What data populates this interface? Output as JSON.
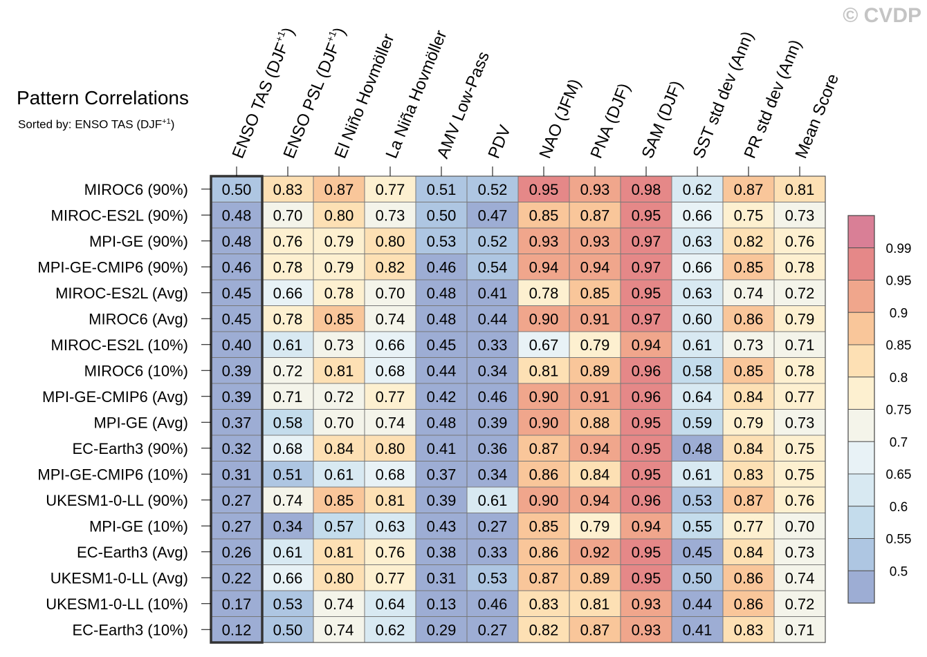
{
  "watermark": "© CVDP",
  "header": {
    "title": "Pattern Correlations",
    "subtitle_prefix": "Sorted by: ENSO TAS (DJF",
    "subtitle_sup": "+1",
    "subtitle_suffix": ")"
  },
  "chart_data": {
    "type": "heatmap",
    "title": "Pattern Correlations",
    "sorted_by": "ENSO TAS (DJF+1)",
    "columns": [
      {
        "label": "ENSO TAS (DJF",
        "sup": "+1",
        "suffix": ")"
      },
      {
        "label": "ENSO PSL (DJF",
        "sup": "+1",
        "suffix": ")"
      },
      {
        "label": "El Niño Hovmöller",
        "sup": "",
        "suffix": ""
      },
      {
        "label": "La Niña Hovmöller",
        "sup": "",
        "suffix": ""
      },
      {
        "label": "AMV Low-Pass",
        "sup": "",
        "suffix": ""
      },
      {
        "label": "PDV",
        "sup": "",
        "suffix": ""
      },
      {
        "label": "NAO (JFM)",
        "sup": "",
        "suffix": ""
      },
      {
        "label": "PNA (DJF)",
        "sup": "",
        "suffix": ""
      },
      {
        "label": "SAM (DJF)",
        "sup": "",
        "suffix": ""
      },
      {
        "label": "SST std dev (Ann)",
        "sup": "",
        "suffix": ""
      },
      {
        "label": "PR std dev (Ann)",
        "sup": "",
        "suffix": ""
      },
      {
        "label": "Mean Score",
        "sup": "",
        "suffix": ""
      }
    ],
    "rows": [
      "MIROC6 (90%)",
      "MIROC-ES2L (90%)",
      "MPI-GE (90%)",
      "MPI-GE-CMIP6 (90%)",
      "MIROC-ES2L (Avg)",
      "MIROC6 (Avg)",
      "MIROC-ES2L (10%)",
      "MIROC6 (10%)",
      "MPI-GE-CMIP6 (Avg)",
      "MPI-GE (Avg)",
      "EC-Earth3 (90%)",
      "MPI-GE-CMIP6 (10%)",
      "UKESM1-0-LL (90%)",
      "MPI-GE (10%)",
      "EC-Earth3 (Avg)",
      "UKESM1-0-LL (Avg)",
      "UKESM1-0-LL (10%)",
      "EC-Earth3 (10%)"
    ],
    "values": [
      [
        "0.50",
        "0.83",
        "0.87",
        "0.77",
        "0.51",
        "0.52",
        "0.95",
        "0.93",
        "0.98",
        "0.62",
        "0.87",
        "0.81"
      ],
      [
        "0.48",
        "0.70",
        "0.80",
        "0.73",
        "0.50",
        "0.47",
        "0.85",
        "0.87",
        "0.95",
        "0.66",
        "0.75",
        "0.73"
      ],
      [
        "0.48",
        "0.76",
        "0.79",
        "0.80",
        "0.53",
        "0.52",
        "0.93",
        "0.93",
        "0.97",
        "0.63",
        "0.82",
        "0.76"
      ],
      [
        "0.46",
        "0.78",
        "0.79",
        "0.82",
        "0.46",
        "0.54",
        "0.94",
        "0.94",
        "0.97",
        "0.66",
        "0.85",
        "0.78"
      ],
      [
        "0.45",
        "0.66",
        "0.78",
        "0.70",
        "0.48",
        "0.41",
        "0.78",
        "0.85",
        "0.95",
        "0.63",
        "0.74",
        "0.72"
      ],
      [
        "0.45",
        "0.78",
        "0.85",
        "0.74",
        "0.48",
        "0.44",
        "0.90",
        "0.91",
        "0.97",
        "0.60",
        "0.86",
        "0.79"
      ],
      [
        "0.40",
        "0.61",
        "0.73",
        "0.66",
        "0.45",
        "0.33",
        "0.67",
        "0.79",
        "0.94",
        "0.61",
        "0.73",
        "0.71"
      ],
      [
        "0.39",
        "0.72",
        "0.81",
        "0.68",
        "0.44",
        "0.34",
        "0.81",
        "0.89",
        "0.96",
        "0.58",
        "0.85",
        "0.78"
      ],
      [
        "0.39",
        "0.71",
        "0.72",
        "0.77",
        "0.42",
        "0.46",
        "0.90",
        "0.91",
        "0.96",
        "0.64",
        "0.84",
        "0.77"
      ],
      [
        "0.37",
        "0.58",
        "0.70",
        "0.74",
        "0.48",
        "0.39",
        "0.90",
        "0.88",
        "0.95",
        "0.59",
        "0.79",
        "0.73"
      ],
      [
        "0.32",
        "0.68",
        "0.84",
        "0.80",
        "0.41",
        "0.36",
        "0.87",
        "0.94",
        "0.95",
        "0.48",
        "0.84",
        "0.75"
      ],
      [
        "0.31",
        "0.51",
        "0.61",
        "0.68",
        "0.37",
        "0.34",
        "0.86",
        "0.84",
        "0.95",
        "0.61",
        "0.83",
        "0.75"
      ],
      [
        "0.27",
        "0.74",
        "0.85",
        "0.81",
        "0.39",
        "0.61",
        "0.90",
        "0.94",
        "0.96",
        "0.53",
        "0.87",
        "0.76"
      ],
      [
        "0.27",
        "0.34",
        "0.57",
        "0.63",
        "0.43",
        "0.27",
        "0.85",
        "0.79",
        "0.94",
        "0.55",
        "0.77",
        "0.70"
      ],
      [
        "0.26",
        "0.61",
        "0.81",
        "0.76",
        "0.38",
        "0.33",
        "0.86",
        "0.92",
        "0.95",
        "0.45",
        "0.84",
        "0.73"
      ],
      [
        "0.22",
        "0.66",
        "0.80",
        "0.77",
        "0.31",
        "0.53",
        "0.87",
        "0.89",
        "0.95",
        "0.50",
        "0.86",
        "0.74"
      ],
      [
        "0.17",
        "0.53",
        "0.74",
        "0.64",
        "0.13",
        "0.46",
        "0.83",
        "0.81",
        "0.93",
        "0.44",
        "0.86",
        "0.72"
      ],
      [
        "0.12",
        "0.50",
        "0.74",
        "0.62",
        "0.29",
        "0.27",
        "0.82",
        "0.87",
        "0.93",
        "0.41",
        "0.83",
        "0.71"
      ]
    ],
    "highlighted_column": "ENSO TAS (DJF+1)",
    "colorbar": {
      "ticks": [
        "0.99",
        "0.95",
        "0.9",
        "0.85",
        "0.8",
        "0.75",
        "0.7",
        "0.65",
        "0.6",
        "0.55",
        "0.5"
      ],
      "levels": [
        0.5,
        0.55,
        0.6,
        0.65,
        0.7,
        0.75,
        0.8,
        0.85,
        0.9,
        0.95,
        0.99
      ],
      "colors": [
        "#9dadd4",
        "#aec6e2",
        "#c4dcec",
        "#d8e9f2",
        "#e8f2f6",
        "#f4f4ea",
        "#fdf0d0",
        "#fde0b4",
        "#f9c69a",
        "#f0a68c",
        "#e58888",
        "#d97f96"
      ]
    }
  }
}
